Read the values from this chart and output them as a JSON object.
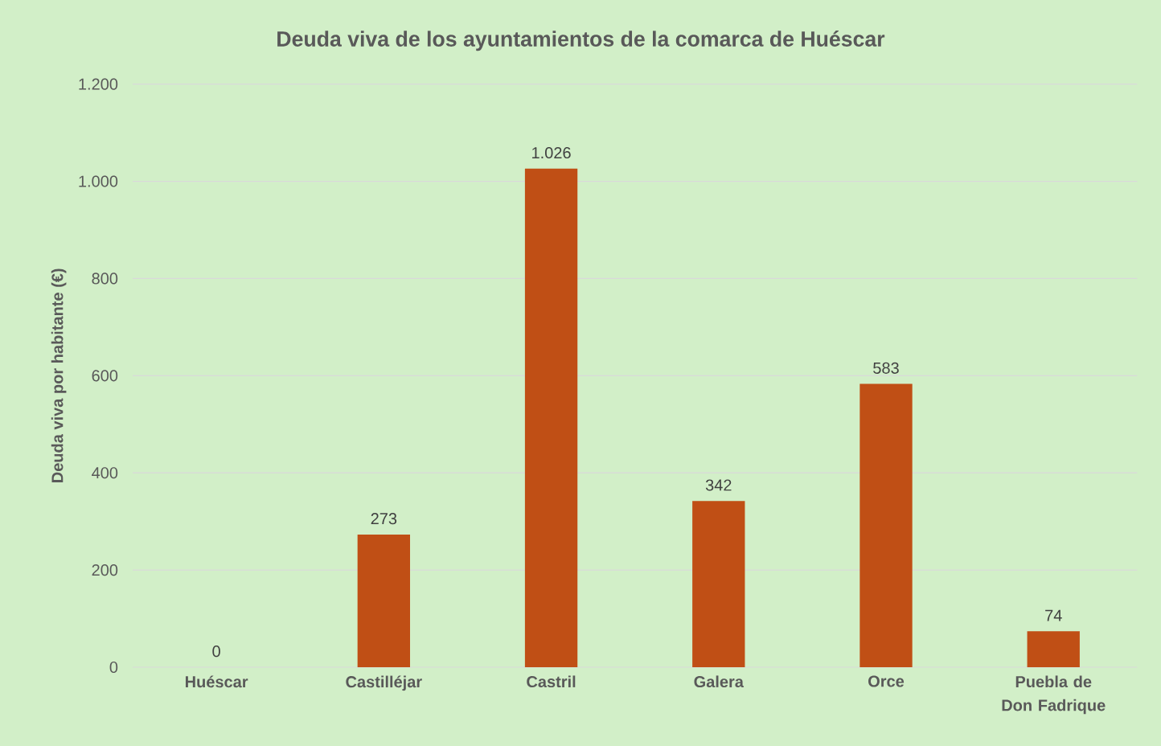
{
  "chart_data": {
    "type": "bar",
    "title": "Deuda viva de los ayuntamientos de la comarca de Huéscar",
    "ylabel": "Deuda viva por habitante (€)",
    "categories": [
      "Huéscar",
      "Castilléjar",
      "Castril",
      "Galera",
      "Orce",
      "Puebla de Don Fadrique"
    ],
    "values": [
      0,
      273,
      1026,
      342,
      583,
      74
    ],
    "value_labels": [
      "0",
      "273",
      "1.026",
      "342",
      "583",
      "74"
    ],
    "color": "#c04f15",
    "ylim": [
      0,
      1200
    ],
    "yticks": [
      0,
      200,
      400,
      600,
      800,
      {
        "value": 1000,
        "label": "1.000"
      },
      {
        "value": 1200,
        "label": "1.200"
      }
    ],
    "grid": "y"
  }
}
